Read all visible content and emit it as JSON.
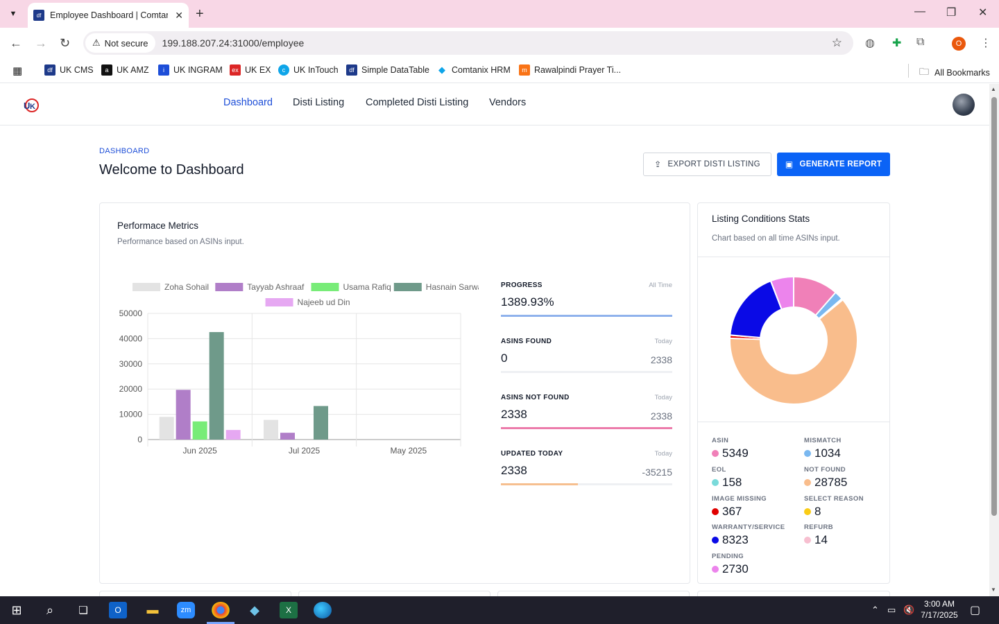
{
  "browser": {
    "tab_title": "Employee Dashboard | Comtanix",
    "tab_favicon": "df",
    "security_label": "Not secure",
    "url": "199.188.207.24:31000/employee",
    "profile_initial": "O",
    "bookmarks": [
      {
        "label": "UK CMS",
        "icon": "df",
        "color": "#1e3a8a"
      },
      {
        "label": "UK AMZ",
        "icon": "a",
        "color": "#111111"
      },
      {
        "label": "UK INGRAM",
        "icon": "i",
        "color": "#1d4ed8"
      },
      {
        "label": "UK EX",
        "icon": "ex",
        "color": "#dc2626"
      },
      {
        "label": "UK InTouch",
        "icon": "c",
        "color": "#0ea5e9"
      },
      {
        "label": "Simple DataTable",
        "icon": "df",
        "color": "#1e3a8a"
      },
      {
        "label": "Comtanix HRM",
        "icon": "◆",
        "color": "#0ea5e9"
      },
      {
        "label": "Rawalpindi Prayer Ti...",
        "icon": "m",
        "color": "#f97316"
      }
    ],
    "all_bookmarks": "All Bookmarks"
  },
  "app": {
    "nav": [
      "Dashboard",
      "Disti Listing",
      "Completed Disti Listing",
      "Vendors"
    ],
    "breadcrumb": "DASHBOARD",
    "page_title": "Welcome to Dashboard",
    "export_label": "EXPORT DISTI LISTING",
    "generate_label": "GENERATE REPORT"
  },
  "performance": {
    "title": "Performace Metrics",
    "subtitle": "Performance based on ASINs input."
  },
  "metrics": [
    {
      "label": "PROGRESS",
      "period": "All Time",
      "value": "1389.93%",
      "compare": "",
      "fill": 1.0,
      "color": "#8fb2ec"
    },
    {
      "label": "ASINS FOUND",
      "period": "Today",
      "value": "0",
      "compare": "2338",
      "fill": 0.0,
      "color": "#8fb2ec"
    },
    {
      "label": "ASINS NOT FOUND",
      "period": "Today",
      "value": "2338",
      "compare": "2338",
      "fill": 1.0,
      "color": "#ec7cab"
    },
    {
      "label": "UPDATED TODAY",
      "period": "Today",
      "value": "2338",
      "compare": "-35215",
      "fill": 0.45,
      "color": "#f6bf8f"
    }
  ],
  "chart_data": {
    "type": "bar",
    "categories": [
      "Jun 2025",
      "Jul 2025",
      "May 2025"
    ],
    "series": [
      {
        "name": "Zoha Sohail",
        "color": "#e3e3e3",
        "values": [
          9000,
          7800,
          0
        ]
      },
      {
        "name": "Tayyab Ashraaf",
        "color": "#b07ec8",
        "values": [
          19700,
          2700,
          0
        ]
      },
      {
        "name": "Usama Rafiq",
        "color": "#78ec78",
        "values": [
          7200,
          0,
          0
        ]
      },
      {
        "name": "Hasnain Sarwar",
        "color": "#6f9a8a",
        "values": [
          42600,
          13300,
          0
        ]
      },
      {
        "name": "Najeeb ud Din",
        "color": "#e6a8f2",
        "values": [
          3800,
          0,
          0
        ]
      }
    ],
    "yticks": [
      0,
      10000,
      20000,
      30000,
      40000,
      50000
    ],
    "ylim": [
      0,
      50000
    ],
    "legend": "top"
  },
  "listing": {
    "title": "Listing Conditions Stats",
    "subtitle": "Chart based on all time ASINs input.",
    "donut": [
      {
        "value": 5349,
        "color": "#f080b8"
      },
      {
        "value": 1034,
        "color": "#7ab8f0"
      },
      {
        "value": 158,
        "color": "#7adada"
      },
      {
        "value": 28785,
        "color": "#f9bd8c"
      },
      {
        "value": 367,
        "color": "#e00000"
      },
      {
        "value": 8,
        "color": "#facc15"
      },
      {
        "value": 8323,
        "color": "#0a0ae6"
      },
      {
        "value": 14,
        "color": "#f7bfd0"
      },
      {
        "value": 2730,
        "color": "#ec84ec"
      }
    ],
    "stats": [
      {
        "label": "ASIN",
        "value": "5349",
        "color": "#f080b8"
      },
      {
        "label": "MISMATCH",
        "value": "1034",
        "color": "#7ab8f0"
      },
      {
        "label": "EOL",
        "value": "158",
        "color": "#7adada"
      },
      {
        "label": "NOT FOUND",
        "value": "28785",
        "color": "#f9bd8c"
      },
      {
        "label": "IMAGE MISSING",
        "value": "367",
        "color": "#e00000"
      },
      {
        "label": "SELECT REASON",
        "value": "8",
        "color": "#facc15"
      },
      {
        "label": "WARRANTY/SERVICE",
        "value": "8323",
        "color": "#0a0ae6"
      },
      {
        "label": "REFURB",
        "value": "14",
        "color": "#f7bfd0"
      },
      {
        "label": "PENDING",
        "value": "2730",
        "color": "#ec84ec"
      }
    ]
  },
  "taskbar": {
    "time": "3:00 AM",
    "date": "7/17/2025",
    "icons": [
      "windows-start-icon",
      "search-icon",
      "task-view-icon",
      "outlook-icon",
      "file-explorer-icon",
      "zoom-icon",
      "chrome-icon",
      "app-icon",
      "excel-icon",
      "edge-icon"
    ]
  }
}
